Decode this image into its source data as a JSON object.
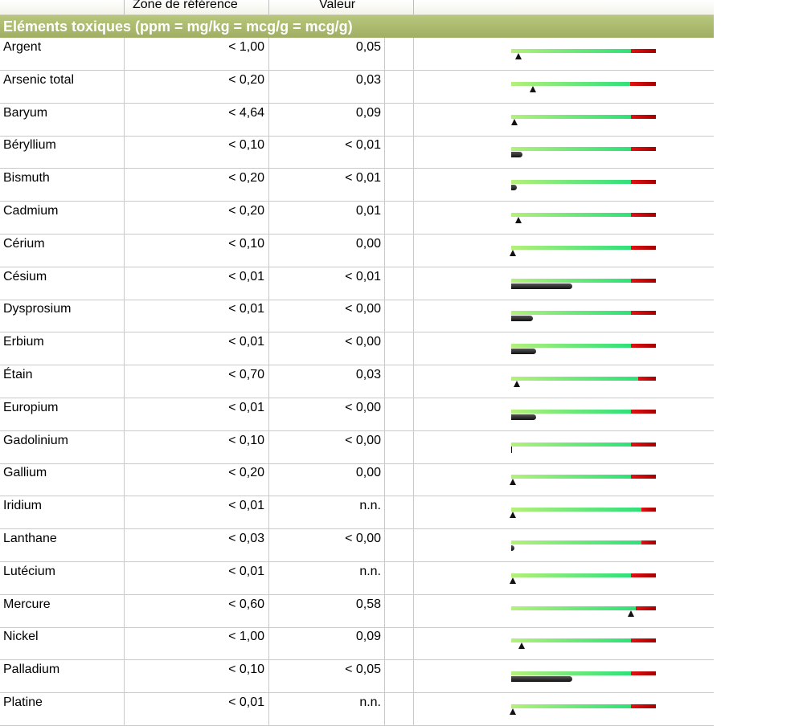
{
  "header": {
    "ref_label": "Zone de référence",
    "value_label": "Valeur"
  },
  "section": {
    "title": "Eléments toxiques (ppm = mg/kg = mcg/g = mcg/g)"
  },
  "rows": [
    {
      "name": "Argent",
      "ref": "< 1,00",
      "value": "0,05",
      "level": 0.05,
      "marker": "triangle",
      "green": 0.83
    },
    {
      "name": "Arsenic total",
      "ref": "< 0,20",
      "value": "0,03",
      "level": 0.15,
      "marker": "triangle",
      "green": 0.82
    },
    {
      "name": "Baryum",
      "ref": "< 4,64",
      "value": "0,09",
      "level": 0.02,
      "marker": "triangle",
      "green": 0.83
    },
    {
      "name": "Béryllium",
      "ref": "< 0,10",
      "value": "< 0,01",
      "level": 0.08,
      "marker": "pill",
      "green": 0.83
    },
    {
      "name": "Bismuth",
      "ref": "< 0,20",
      "value": "< 0,01",
      "level": 0.04,
      "marker": "pill",
      "green": 0.83
    },
    {
      "name": "Cadmium",
      "ref": "< 0,20",
      "value": "0,01",
      "level": 0.05,
      "marker": "triangle",
      "green": 0.83
    },
    {
      "name": "Cérium",
      "ref": "< 0,10",
      "value": "0,00",
      "level": 0.01,
      "marker": "triangle",
      "green": 0.83
    },
    {
      "name": "Césium",
      "ref": "< 0,01",
      "value": "< 0,01",
      "level": 0.42,
      "marker": "pill",
      "green": 0.83
    },
    {
      "name": "Dysprosium",
      "ref": "< 0,01",
      "value": "< 0,00",
      "level": 0.15,
      "marker": "pill",
      "green": 0.83
    },
    {
      "name": "Erbium",
      "ref": "< 0,01",
      "value": "< 0,00",
      "level": 0.17,
      "marker": "pill",
      "green": 0.83
    },
    {
      "name": "Étain",
      "ref": "< 0,70",
      "value": "0,03",
      "level": 0.04,
      "marker": "triangle",
      "green": 0.88
    },
    {
      "name": "Europium",
      "ref": "< 0,01",
      "value": "< 0,00",
      "level": 0.17,
      "marker": "pill",
      "green": 0.83
    },
    {
      "name": "Gadolinium",
      "ref": "< 0,10",
      "value": "< 0,00",
      "level": 0.0,
      "marker": "line",
      "green": 0.83
    },
    {
      "name": "Gallium",
      "ref": "< 0,20",
      "value": "0,00",
      "level": 0.01,
      "marker": "triangle",
      "green": 0.83
    },
    {
      "name": "Iridium",
      "ref": "< 0,01",
      "value": "n.n.",
      "level": 0.01,
      "marker": "triangle",
      "green": 0.9
    },
    {
      "name": "Lanthane",
      "ref": "< 0,03",
      "value": "< 0,00",
      "level": 0.02,
      "marker": "pill",
      "green": 0.9
    },
    {
      "name": "Lutécium",
      "ref": "< 0,01",
      "value": "n.n.",
      "level": 0.01,
      "marker": "triangle",
      "green": 0.83
    },
    {
      "name": "Mercure",
      "ref": "< 0,60",
      "value": "0,58",
      "level": 0.83,
      "marker": "triangle",
      "green": 0.86
    },
    {
      "name": "Nickel",
      "ref": "< 1,00",
      "value": "0,09",
      "level": 0.07,
      "marker": "triangle",
      "green": 0.83
    },
    {
      "name": "Palladium",
      "ref": "< 0,10",
      "value": "< 0,05",
      "level": 0.42,
      "marker": "pill",
      "green": 0.83
    },
    {
      "name": "Platine",
      "ref": "< 0,01",
      "value": "n.n.",
      "level": 0.01,
      "marker": "triangle",
      "green": 0.83
    }
  ]
}
